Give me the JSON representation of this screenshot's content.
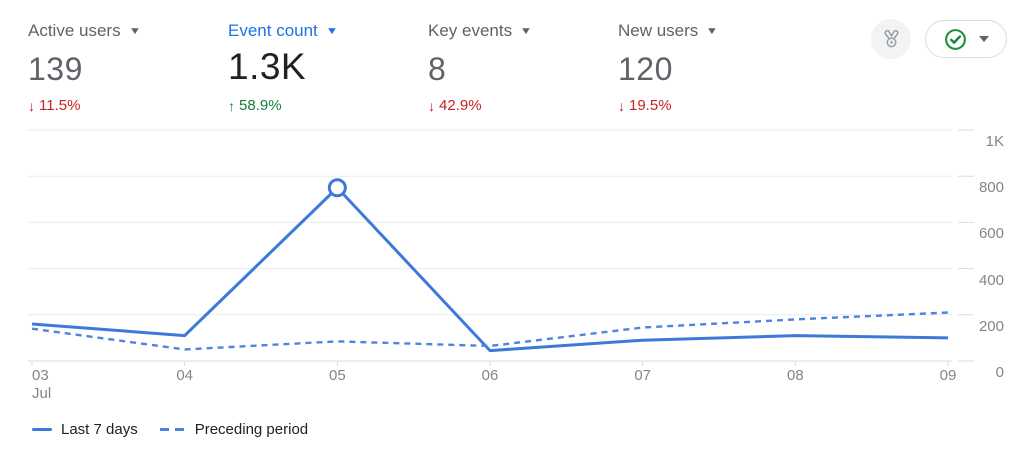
{
  "metrics": [
    {
      "label": "Active users",
      "value": "139",
      "change": "11.5%",
      "direction": "down",
      "selected": false
    },
    {
      "label": "Event count",
      "value": "1.3K",
      "change": "58.9%",
      "direction": "up",
      "selected": true
    },
    {
      "label": "Key events",
      "value": "8",
      "change": "42.9%",
      "direction": "down",
      "selected": false
    },
    {
      "label": "New users",
      "value": "120",
      "change": "19.5%",
      "direction": "down",
      "selected": false
    }
  ],
  "colors": {
    "accent_blue": "#1a73e8",
    "negative_red": "#c5221f",
    "positive_green": "#188038",
    "line_solid": "#3d79d9",
    "line_dashed": "#4d84e0",
    "gridline": "#e9ebee",
    "axis": "#dadce0",
    "tick_text": "#80868b"
  },
  "header_actions": {
    "benchmark_icon": "medal-icon",
    "status_icon": "check-circle-icon"
  },
  "chart_data": {
    "type": "line",
    "x": [
      "03",
      "04",
      "05",
      "06",
      "07",
      "08",
      "09"
    ],
    "x_month_label": "Jul",
    "series": [
      {
        "name": "Last 7 days",
        "style": "solid",
        "values": [
          160,
          110,
          750,
          45,
          90,
          110,
          100
        ]
      },
      {
        "name": "Preceding period",
        "style": "dashed",
        "values": [
          140,
          50,
          85,
          65,
          145,
          180,
          210
        ]
      }
    ],
    "yticks": [
      {
        "label": "0",
        "value": 0
      },
      {
        "label": "200",
        "value": 200
      },
      {
        "label": "400",
        "value": 400
      },
      {
        "label": "600",
        "value": 600
      },
      {
        "label": "800",
        "value": 800
      },
      {
        "label": "1K",
        "value": 1000
      }
    ],
    "ylim": [
      0,
      1000
    ],
    "grid": "horizontal",
    "legend_position": "bottom-left",
    "marker": {
      "series": 0,
      "index": 2
    }
  },
  "legend": [
    {
      "label": "Last 7 days",
      "style": "solid"
    },
    {
      "label": "Preceding period",
      "style": "dashed"
    }
  ]
}
